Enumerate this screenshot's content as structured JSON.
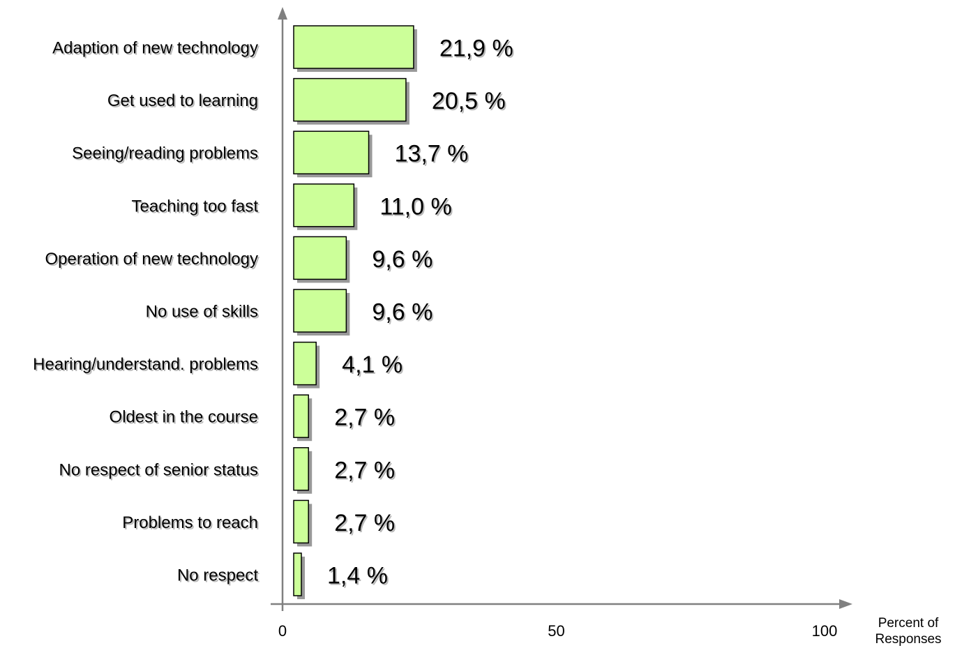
{
  "chart_data": {
    "type": "bar",
    "orientation": "horizontal",
    "categories": [
      "Adaption of new technology",
      "Get used to learning",
      "Seeing/reading problems",
      "Teaching too fast",
      "Operation of new technology",
      "No use of skills",
      "Hearing/understand. problems",
      "Oldest in the course",
      "No respect of senior status",
      "Problems to reach",
      "No respect"
    ],
    "values": [
      21.9,
      20.5,
      13.7,
      11.0,
      9.6,
      9.6,
      4.1,
      2.7,
      2.7,
      2.7,
      1.4
    ],
    "value_labels": [
      "21,9 %",
      "20,5 %",
      "13,7 %",
      "11,0 %",
      "9,6 %",
      "9,6 %",
      "4,1 %",
      "2,7 %",
      "2,7 %",
      "2,7 %",
      "1,4 %"
    ],
    "x_ticks": [
      0,
      50,
      100
    ],
    "x_tick_labels": [
      "0",
      "50",
      "100"
    ],
    "xlim": [
      0,
      100
    ],
    "xlabel_lines": [
      "Percent of",
      "Responses"
    ],
    "title": "",
    "ylabel": "",
    "grid": false,
    "bar_color": "#ccff99",
    "bar_border_color": "#000000",
    "axis_color": "#808080",
    "shadow_color": "#999999"
  }
}
